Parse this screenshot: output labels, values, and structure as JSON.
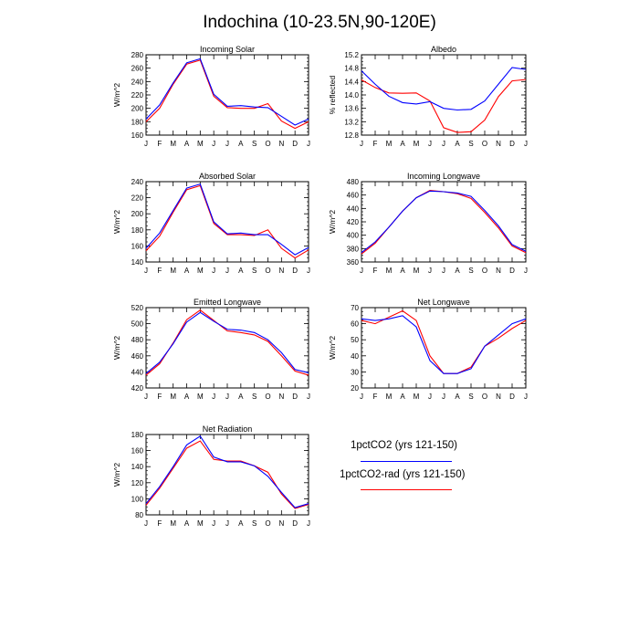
{
  "title": "Indochina (10-23.5N,90-120E)",
  "months": [
    "J",
    "F",
    "M",
    "A",
    "M",
    "J",
    "J",
    "A",
    "S",
    "O",
    "N",
    "D",
    "J"
  ],
  "colors": {
    "series_a": "#0000ff",
    "series_b": "#ff0000"
  },
  "legend": [
    {
      "label": "1pctCO2 (yrs 121-150)",
      "color": "#0000ff"
    },
    {
      "label": "1pctCO2-rad (yrs 121-150)",
      "color": "#ff0000"
    }
  ],
  "chart_data": [
    {
      "type": "line",
      "title": "Incoming Solar",
      "ylabel": "W/m^2",
      "ylim": [
        160,
        280
      ],
      "yticks": [
        160,
        180,
        200,
        220,
        240,
        260,
        280
      ],
      "series": [
        {
          "name": "1pctCO2 (yrs 121-150)",
          "values": [
            184,
            205,
            238,
            268,
            274,
            221,
            203,
            204,
            202,
            201,
            188,
            175,
            184
          ]
        },
        {
          "name": "1pctCO2-rad (yrs 121-150)",
          "values": [
            180,
            200,
            236,
            266,
            272,
            218,
            201,
            200,
            200,
            207,
            181,
            170,
            180
          ]
        }
      ]
    },
    {
      "type": "line",
      "title": "Albedo",
      "ylabel": "% reflected",
      "ylim": [
        12.8,
        15.2
      ],
      "yticks": [
        12.8,
        13.2,
        13.6,
        14.0,
        14.4,
        14.8,
        15.2
      ],
      "series": [
        {
          "name": "1pctCO2 (yrs 121-150)",
          "values": [
            14.72,
            14.32,
            13.96,
            13.77,
            13.73,
            13.8,
            13.6,
            13.55,
            13.57,
            13.82,
            14.32,
            14.82,
            14.76
          ]
        },
        {
          "name": "1pctCO2-rad (yrs 121-150)",
          "values": [
            14.45,
            14.22,
            14.06,
            14.05,
            14.06,
            13.82,
            13.02,
            12.88,
            12.9,
            13.25,
            13.95,
            14.42,
            14.46
          ]
        }
      ]
    },
    {
      "type": "line",
      "title": "Absorbed Solar",
      "ylabel": "W/m^2",
      "ylim": [
        140,
        240
      ],
      "yticks": [
        140,
        160,
        180,
        200,
        220,
        240
      ],
      "series": [
        {
          "name": "1pctCO2 (yrs 121-150)",
          "values": [
            157,
            176,
            204,
            232,
            237,
            190,
            175,
            176,
            174,
            174,
            162,
            149,
            158
          ]
        },
        {
          "name": "1pctCO2-rad (yrs 121-150)",
          "values": [
            154,
            172,
            202,
            230,
            235,
            188,
            174,
            174,
            173,
            180,
            157,
            145,
            155
          ]
        }
      ]
    },
    {
      "type": "line",
      "title": "Incoming Longwave",
      "ylabel": "W/m^2",
      "ylim": [
        360,
        480
      ],
      "yticks": [
        360,
        380,
        400,
        420,
        440,
        460,
        480
      ],
      "series": [
        {
          "name": "1pctCO2 (yrs 121-150)",
          "values": [
            374,
            390,
            412,
            436,
            456,
            466,
            465,
            463,
            458,
            437,
            414,
            386,
            376
          ]
        },
        {
          "name": "1pctCO2-rad (yrs 121-150)",
          "values": [
            372,
            388,
            412,
            436,
            456,
            467,
            465,
            462,
            455,
            434,
            411,
            384,
            374
          ]
        }
      ]
    },
    {
      "type": "line",
      "title": "Emitted Longwave",
      "ylabel": "W/m^2",
      "ylim": [
        420,
        520
      ],
      "yticks": [
        420,
        440,
        460,
        480,
        500,
        520
      ],
      "series": [
        {
          "name": "1pctCO2 (yrs 121-150)",
          "values": [
            438,
            452,
            475,
            502,
            514,
            503,
            493,
            492,
            489,
            480,
            464,
            443,
            439
          ]
        },
        {
          "name": "1pctCO2-rad (yrs 121-150)",
          "values": [
            436,
            450,
            476,
            505,
            517,
            504,
            491,
            489,
            486,
            478,
            460,
            441,
            436
          ]
        }
      ]
    },
    {
      "type": "line",
      "title": "Net Longwave",
      "ylabel": "W/m^2",
      "ylim": [
        20,
        70
      ],
      "yticks": [
        20,
        30,
        40,
        50,
        60,
        70
      ],
      "series": [
        {
          "name": "1pctCO2 (yrs 121-150)",
          "values": [
            63,
            62,
            63,
            65,
            58,
            37,
            29,
            29,
            32,
            46,
            53,
            60,
            63
          ]
        },
        {
          "name": "1pctCO2-rad (yrs 121-150)",
          "values": [
            62,
            60,
            64,
            68,
            62,
            40,
            29,
            29,
            33,
            46,
            51,
            57,
            62
          ]
        }
      ]
    },
    {
      "type": "line",
      "title": "Net Radiation",
      "ylabel": "W/m^2",
      "ylim": [
        80,
        180
      ],
      "yticks": [
        80,
        100,
        120,
        140,
        160,
        180
      ],
      "series": [
        {
          "name": "1pctCO2 (yrs 121-150)",
          "values": [
            94,
            115,
            140,
            167,
            178,
            152,
            146,
            146,
            141,
            128,
            108,
            89,
            94
          ]
        },
        {
          "name": "1pctCO2-rad (yrs 121-150)",
          "values": [
            92,
            113,
            138,
            163,
            172,
            149,
            147,
            147,
            141,
            133,
            106,
            88,
            93
          ]
        }
      ]
    }
  ]
}
